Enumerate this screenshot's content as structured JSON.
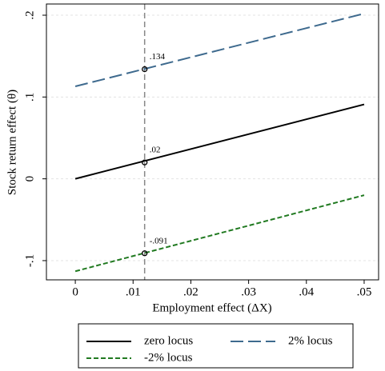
{
  "chart_data": {
    "type": "line",
    "x_label": "Employment effect (ΔX)",
    "y_label": "Stock return effect (θ)",
    "x": [
      0,
      0.05
    ],
    "series": [
      {
        "name": "zero locus",
        "color": "#000000",
        "dash": "solid",
        "values": [
          0,
          0.091
        ]
      },
      {
        "name": "2% locus",
        "color": "#3e6a8e",
        "dash": "long",
        "values": [
          0.113,
          0.202
        ]
      },
      {
        "name": "-2% locus",
        "color": "#217a21",
        "dash": "short",
        "values": [
          -0.113,
          -0.02
        ]
      }
    ],
    "vline": 0.012,
    "markers": {
      "x": 0.012,
      "values": [
        0.134,
        0.02,
        -0.091
      ],
      "value_labels": [
        ".134",
        ".02",
        "-.091"
      ]
    },
    "xlim": [
      -0.005,
      0.0525
    ],
    "ylim": [
      -0.1235,
      0.2137
    ],
    "xticks": [
      0,
      {
        "value": 0.01,
        "label": ".01"
      },
      {
        "value": 0.02,
        "label": ".02"
      },
      {
        "value": 0.03,
        "label": ".03"
      },
      {
        "value": 0.04,
        "label": ".04"
      },
      {
        "value": 0.05,
        "label": ".05"
      }
    ],
    "yticks": [
      {
        "value": -0.1,
        "label": "-.1"
      },
      0,
      {
        "value": 0.1,
        "label": ".1"
      },
      {
        "value": 0.2,
        "label": ".2"
      }
    ],
    "grid": true
  }
}
